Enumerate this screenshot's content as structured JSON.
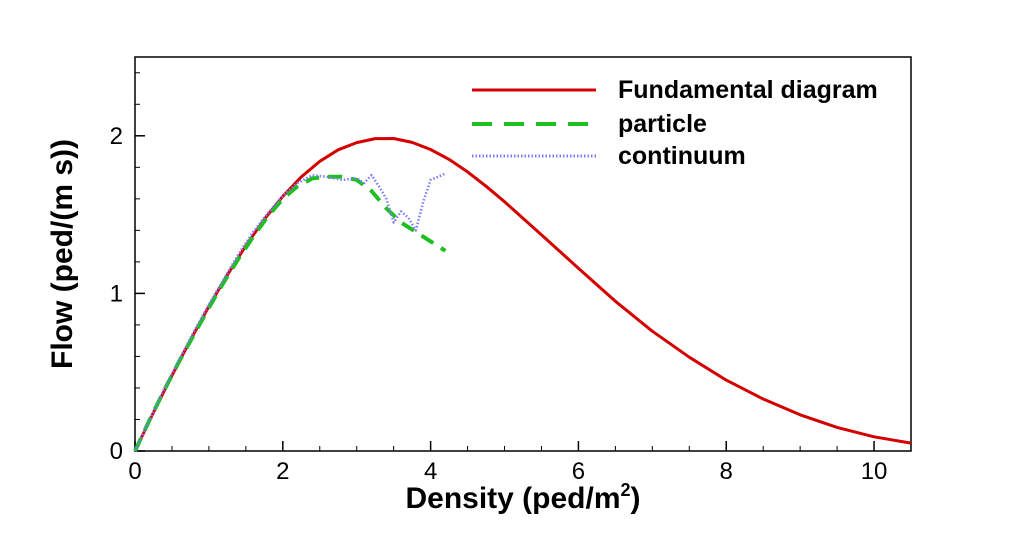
{
  "chart_data": {
    "type": "line",
    "title": "",
    "xlabel": "Density (ped/m",
    "xlabel_superscript": "2",
    "xlabel_suffix": ")",
    "ylabel": "Flow (ped/(m s))",
    "xlim": [
      0,
      10.5
    ],
    "ylim": [
      0,
      2.5
    ],
    "grid": false,
    "legend_position": "top-right",
    "x_ticks": [
      0,
      2,
      4,
      6,
      8,
      10
    ],
    "x_tick_labels": [
      "0",
      "2",
      "4",
      "6",
      "8",
      "10"
    ],
    "y_ticks": [
      0,
      1,
      2
    ],
    "y_tick_labels": [
      "0",
      "1",
      "2"
    ],
    "series": [
      {
        "name": "Fundamental diagram",
        "color": "#d40000",
        "style": "solid",
        "x": [
          0,
          0.25,
          0.5,
          0.75,
          1.0,
          1.25,
          1.5,
          1.75,
          2.0,
          2.25,
          2.5,
          2.75,
          3.0,
          3.25,
          3.5,
          3.75,
          4.0,
          4.25,
          4.5,
          4.75,
          5.0,
          5.5,
          6.0,
          6.5,
          7.0,
          7.5,
          8.0,
          8.5,
          9.0,
          9.5,
          10.0,
          10.5
        ],
        "y": [
          0,
          0.245,
          0.48,
          0.704,
          0.918,
          1.118,
          1.303,
          1.47,
          1.616,
          1.739,
          1.838,
          1.911,
          1.957,
          1.982,
          1.983,
          1.958,
          1.913,
          1.85,
          1.771,
          1.68,
          1.582,
          1.371,
          1.16,
          0.95,
          0.76,
          0.595,
          0.45,
          0.33,
          0.23,
          0.15,
          0.09,
          0.05
        ]
      },
      {
        "name": "particle",
        "color": "#1fbf1f",
        "style": "dashed",
        "x": [
          0,
          0.2,
          0.4,
          0.6,
          0.8,
          1.0,
          1.2,
          1.4,
          1.6,
          1.8,
          2.0,
          2.2,
          2.4,
          2.6,
          2.8,
          3.0,
          3.2,
          3.4,
          3.6,
          3.8,
          4.0,
          4.2
        ],
        "y": [
          0,
          0.2,
          0.39,
          0.57,
          0.74,
          0.91,
          1.07,
          1.22,
          1.36,
          1.49,
          1.6,
          1.68,
          1.73,
          1.74,
          1.74,
          1.72,
          1.65,
          1.54,
          1.45,
          1.39,
          1.33,
          1.27
        ]
      },
      {
        "name": "continuum",
        "color": "#7b7bff",
        "style": "dotted",
        "x": [
          0,
          0.2,
          0.4,
          0.6,
          0.8,
          1.0,
          1.2,
          1.4,
          1.6,
          1.8,
          2.0,
          2.2,
          2.4,
          2.6,
          2.8,
          3.0,
          3.1,
          3.2,
          3.3,
          3.4,
          3.5,
          3.6,
          3.7,
          3.8,
          3.9,
          4.0,
          4.1,
          4.2
        ],
        "y": [
          0,
          0.2,
          0.4,
          0.58,
          0.76,
          0.93,
          1.09,
          1.25,
          1.39,
          1.51,
          1.62,
          1.7,
          1.75,
          1.74,
          1.72,
          1.73,
          1.7,
          1.75,
          1.68,
          1.6,
          1.45,
          1.52,
          1.48,
          1.4,
          1.58,
          1.72,
          1.74,
          1.76
        ]
      }
    ]
  }
}
